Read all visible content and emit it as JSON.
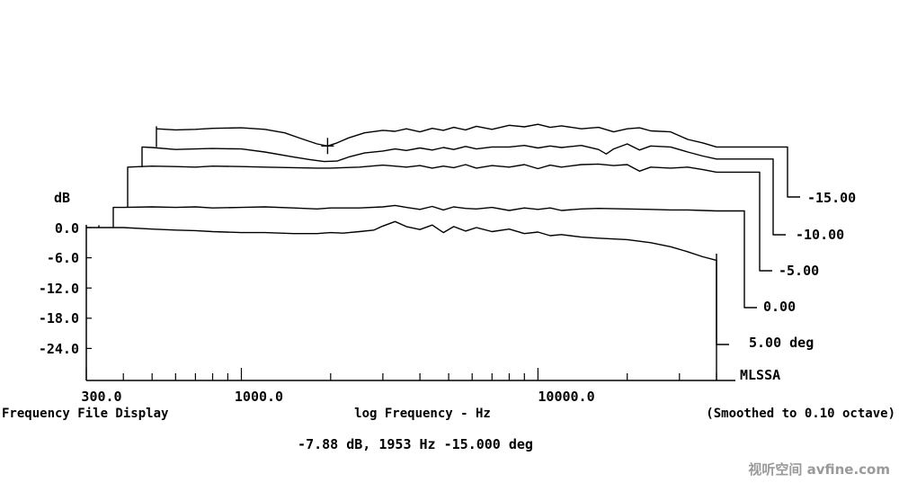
{
  "chart_data": {
    "type": "line",
    "ylabel": "dB",
    "y_ticks": [
      "0.0",
      "-6.0",
      "-12.0",
      "-18.0",
      "-24.0"
    ],
    "x_ticks": [
      "300.0",
      "1000.0",
      "10000.0"
    ],
    "x_scale": "log",
    "xlim": [
      300,
      40000
    ],
    "ylim": [
      -30,
      2
    ],
    "footer_left": "Frequency File Display",
    "footer_center": "log Frequency - Hz",
    "footer_right": "(Smoothed to 0.10 octave)",
    "cursor_readout": "-7.88 dB, 1953 Hz  -15.000 deg",
    "cursor": {
      "freq_hz": 1953,
      "db": -7.88
    },
    "source_label": "MLSSA",
    "series_labels": [
      "-15.00",
      "-10.00",
      "-5.00",
      "0.00",
      "5.00 deg"
    ],
    "series": [
      {
        "name": "5.00 deg",
        "offset_db": 0,
        "points": [
          [
            300,
            0.0
          ],
          [
            400,
            0.0
          ],
          [
            500,
            -0.3
          ],
          [
            600,
            -0.5
          ],
          [
            700,
            -0.6
          ],
          [
            800,
            -0.8
          ],
          [
            1000,
            -1.0
          ],
          [
            1200,
            -1.0
          ],
          [
            1500,
            -1.2
          ],
          [
            1800,
            -1.2
          ],
          [
            2000,
            -1.0
          ],
          [
            2200,
            -1.1
          ],
          [
            2500,
            -0.8
          ],
          [
            2800,
            -0.5
          ],
          [
            3000,
            0.3
          ],
          [
            3300,
            1.2
          ],
          [
            3600,
            0.2
          ],
          [
            4000,
            -0.4
          ],
          [
            4400,
            0.5
          ],
          [
            4800,
            -1.0
          ],
          [
            5200,
            0.2
          ],
          [
            5700,
            -0.7
          ],
          [
            6200,
            0.0
          ],
          [
            7000,
            -0.8
          ],
          [
            8000,
            -0.3
          ],
          [
            9000,
            -1.2
          ],
          [
            10000,
            -0.9
          ],
          [
            11000,
            -1.6
          ],
          [
            12000,
            -1.4
          ],
          [
            14000,
            -1.9
          ],
          [
            16000,
            -2.1
          ],
          [
            20000,
            -2.4
          ],
          [
            24000,
            -3.0
          ],
          [
            28000,
            -3.8
          ],
          [
            32000,
            -4.8
          ],
          [
            36000,
            -5.8
          ],
          [
            40000,
            -6.5
          ]
        ]
      },
      {
        "name": "0.00",
        "offset_db": 0,
        "points": [
          [
            300,
            4.0
          ],
          [
            400,
            4.0
          ],
          [
            500,
            4.1
          ],
          [
            600,
            4.0
          ],
          [
            700,
            4.1
          ],
          [
            800,
            3.9
          ],
          [
            1000,
            4.0
          ],
          [
            1200,
            4.1
          ],
          [
            1500,
            3.9
          ],
          [
            1800,
            3.7
          ],
          [
            2000,
            3.9
          ],
          [
            2500,
            3.9
          ],
          [
            3000,
            4.1
          ],
          [
            3300,
            4.4
          ],
          [
            3600,
            4.0
          ],
          [
            4000,
            3.6
          ],
          [
            4400,
            4.2
          ],
          [
            4800,
            3.5
          ],
          [
            5200,
            4.1
          ],
          [
            5700,
            3.8
          ],
          [
            6200,
            3.7
          ],
          [
            7000,
            4.0
          ],
          [
            8000,
            3.4
          ],
          [
            9000,
            3.9
          ],
          [
            10000,
            3.6
          ],
          [
            11000,
            3.9
          ],
          [
            12000,
            3.4
          ],
          [
            14000,
            3.7
          ],
          [
            16000,
            3.8
          ],
          [
            20000,
            3.7
          ],
          [
            24000,
            3.6
          ],
          [
            28000,
            3.5
          ],
          [
            32000,
            3.5
          ],
          [
            36000,
            3.4
          ],
          [
            40000,
            3.3
          ]
        ]
      },
      {
        "name": "-5.00",
        "offset_db": 0,
        "points": [
          [
            300,
            12.0
          ],
          [
            400,
            12.0
          ],
          [
            500,
            12.2
          ],
          [
            600,
            12.1
          ],
          [
            700,
            12.0
          ],
          [
            800,
            12.2
          ],
          [
            1000,
            12.1
          ],
          [
            1200,
            12.0
          ],
          [
            1500,
            11.9
          ],
          [
            1800,
            11.8
          ],
          [
            2000,
            11.8
          ],
          [
            2200,
            11.9
          ],
          [
            2500,
            12.0
          ],
          [
            3000,
            12.4
          ],
          [
            3300,
            12.2
          ],
          [
            3600,
            12.0
          ],
          [
            4000,
            12.3
          ],
          [
            4400,
            11.8
          ],
          [
            4800,
            12.2
          ],
          [
            5200,
            11.9
          ],
          [
            5700,
            12.5
          ],
          [
            6200,
            11.8
          ],
          [
            7000,
            12.3
          ],
          [
            8000,
            12.0
          ],
          [
            9000,
            12.5
          ],
          [
            10000,
            11.7
          ],
          [
            11000,
            12.4
          ],
          [
            12000,
            12.0
          ],
          [
            14000,
            12.5
          ],
          [
            16000,
            12.6
          ],
          [
            18000,
            12.3
          ],
          [
            20000,
            12.5
          ],
          [
            22000,
            11.2
          ],
          [
            24000,
            12.0
          ],
          [
            28000,
            11.8
          ],
          [
            32000,
            12.0
          ],
          [
            36000,
            11.5
          ],
          [
            40000,
            11.0
          ]
        ]
      },
      {
        "name": "-10.00",
        "offset_db": 0,
        "points": [
          [
            300,
            16.0
          ],
          [
            400,
            16.0
          ],
          [
            500,
            15.9
          ],
          [
            600,
            15.5
          ],
          [
            700,
            15.6
          ],
          [
            800,
            15.7
          ],
          [
            1000,
            15.6
          ],
          [
            1200,
            15.0
          ],
          [
            1500,
            14.0
          ],
          [
            1700,
            13.5
          ],
          [
            1900,
            13.1
          ],
          [
            2100,
            13.2
          ],
          [
            2300,
            14.0
          ],
          [
            2600,
            14.8
          ],
          [
            3000,
            15.2
          ],
          [
            3300,
            15.6
          ],
          [
            3600,
            15.3
          ],
          [
            4000,
            15.8
          ],
          [
            4400,
            15.4
          ],
          [
            4800,
            15.9
          ],
          [
            5200,
            15.5
          ],
          [
            5700,
            16.1
          ],
          [
            6200,
            15.6
          ],
          [
            7000,
            16.0
          ],
          [
            8000,
            16.0
          ],
          [
            9000,
            16.3
          ],
          [
            10000,
            15.8
          ],
          [
            11000,
            16.2
          ],
          [
            12000,
            15.9
          ],
          [
            14000,
            16.3
          ],
          [
            16000,
            15.5
          ],
          [
            17000,
            14.6
          ],
          [
            18000,
            15.6
          ],
          [
            20000,
            16.6
          ],
          [
            22000,
            15.4
          ],
          [
            24000,
            16.2
          ],
          [
            28000,
            16.0
          ],
          [
            32000,
            15.0
          ],
          [
            36000,
            14.2
          ],
          [
            40000,
            13.6
          ]
        ]
      },
      {
        "name": "-15.00",
        "offset_db": 0,
        "points": [
          [
            300,
            20.0
          ],
          [
            400,
            20.0
          ],
          [
            500,
            19.6
          ],
          [
            600,
            19.4
          ],
          [
            700,
            19.5
          ],
          [
            800,
            19.7
          ],
          [
            1000,
            19.8
          ],
          [
            1200,
            19.5
          ],
          [
            1400,
            18.8
          ],
          [
            1600,
            17.6
          ],
          [
            1800,
            16.6
          ],
          [
            1953,
            16.2
          ],
          [
            2100,
            16.8
          ],
          [
            2300,
            17.8
          ],
          [
            2600,
            18.8
          ],
          [
            3000,
            19.3
          ],
          [
            3300,
            19.1
          ],
          [
            3600,
            19.6
          ],
          [
            4000,
            19.0
          ],
          [
            4400,
            19.7
          ],
          [
            4800,
            19.3
          ],
          [
            5200,
            19.9
          ],
          [
            5700,
            19.4
          ],
          [
            6200,
            20.1
          ],
          [
            7000,
            19.5
          ],
          [
            8000,
            20.3
          ],
          [
            9000,
            20.0
          ],
          [
            10000,
            20.5
          ],
          [
            11000,
            19.9
          ],
          [
            12000,
            20.2
          ],
          [
            14000,
            19.6
          ],
          [
            16000,
            19.9
          ],
          [
            18000,
            19.0
          ],
          [
            20000,
            19.6
          ],
          [
            22000,
            19.8
          ],
          [
            24000,
            19.2
          ],
          [
            28000,
            19.0
          ],
          [
            32000,
            17.5
          ],
          [
            36000,
            16.8
          ],
          [
            40000,
            16.0
          ]
        ]
      }
    ]
  },
  "watermark": "视听空间 avfine.com"
}
